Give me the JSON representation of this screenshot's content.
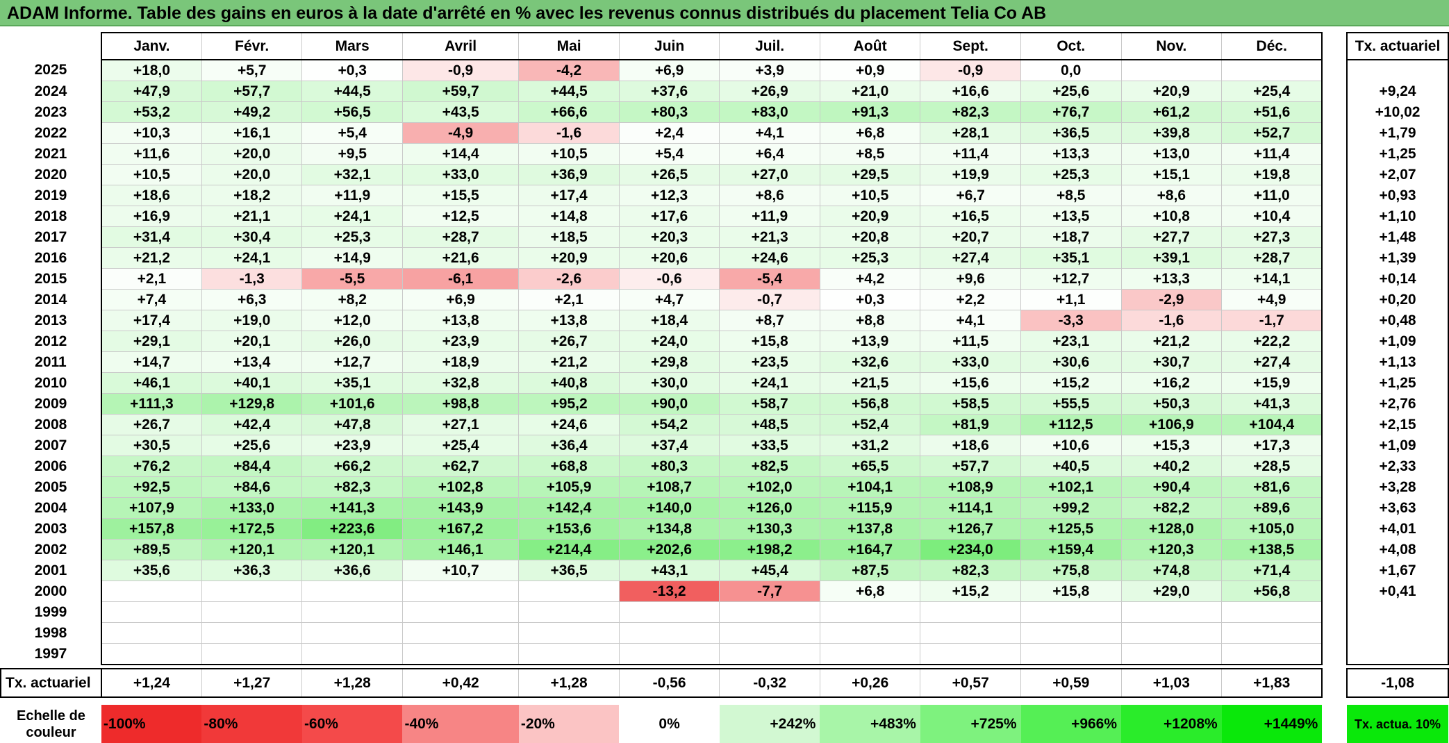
{
  "title": "ADAM Informe. Table des gains en euros à la date d'arrêté en % avec les revenus connus distribués du placement Telia Co AB",
  "header": {
    "months": [
      "Janv.",
      "Févr.",
      "Mars",
      "Avril",
      "Mai",
      "Juin",
      "Juil.",
      "Août",
      "Sept.",
      "Oct.",
      "Nov.",
      "Déc."
    ],
    "annual_label": "Tx. actuariel"
  },
  "rows": [
    {
      "year": "2025",
      "values": [
        "+18,0",
        "+5,7",
        "+0,3",
        "-0,9",
        "-4,2",
        "+6,9",
        "+3,9",
        "+0,9",
        "-0,9",
        "0,0",
        "",
        ""
      ],
      "annual": ""
    },
    {
      "year": "2024",
      "values": [
        "+47,9",
        "+57,7",
        "+44,5",
        "+59,7",
        "+44,5",
        "+37,6",
        "+26,9",
        "+21,0",
        "+16,6",
        "+25,6",
        "+20,9",
        "+25,4"
      ],
      "annual": "+9,24"
    },
    {
      "year": "2023",
      "values": [
        "+53,2",
        "+49,2",
        "+56,5",
        "+43,5",
        "+66,6",
        "+80,3",
        "+83,0",
        "+91,3",
        "+82,3",
        "+76,7",
        "+61,2",
        "+51,6"
      ],
      "annual": "+10,02"
    },
    {
      "year": "2022",
      "values": [
        "+10,3",
        "+16,1",
        "+5,4",
        "-4,9",
        "-1,6",
        "+2,4",
        "+4,1",
        "+6,8",
        "+28,1",
        "+36,5",
        "+39,8",
        "+52,7"
      ],
      "annual": "+1,79"
    },
    {
      "year": "2021",
      "values": [
        "+11,6",
        "+20,0",
        "+9,5",
        "+14,4",
        "+10,5",
        "+5,4",
        "+6,4",
        "+8,5",
        "+11,4",
        "+13,3",
        "+13,0",
        "+11,4"
      ],
      "annual": "+1,25"
    },
    {
      "year": "2020",
      "values": [
        "+10,5",
        "+20,0",
        "+32,1",
        "+33,0",
        "+36,9",
        "+26,5",
        "+27,0",
        "+29,5",
        "+19,9",
        "+25,3",
        "+15,1",
        "+19,8"
      ],
      "annual": "+2,07"
    },
    {
      "year": "2019",
      "values": [
        "+18,6",
        "+18,2",
        "+11,9",
        "+15,5",
        "+17,4",
        "+12,3",
        "+8,6",
        "+10,5",
        "+6,7",
        "+8,5",
        "+8,6",
        "+11,0"
      ],
      "annual": "+0,93"
    },
    {
      "year": "2018",
      "values": [
        "+16,9",
        "+21,1",
        "+24,1",
        "+12,5",
        "+14,8",
        "+17,6",
        "+11,9",
        "+20,9",
        "+16,5",
        "+13,5",
        "+10,8",
        "+10,4"
      ],
      "annual": "+1,10"
    },
    {
      "year": "2017",
      "values": [
        "+31,4",
        "+30,4",
        "+25,3",
        "+28,7",
        "+18,5",
        "+20,3",
        "+21,3",
        "+20,8",
        "+20,7",
        "+18,7",
        "+27,7",
        "+27,3"
      ],
      "annual": "+1,48"
    },
    {
      "year": "2016",
      "values": [
        "+21,2",
        "+24,1",
        "+14,9",
        "+21,6",
        "+20,9",
        "+20,6",
        "+24,6",
        "+25,3",
        "+27,4",
        "+35,1",
        "+39,1",
        "+28,7"
      ],
      "annual": "+1,39"
    },
    {
      "year": "2015",
      "values": [
        "+2,1",
        "-1,3",
        "-5,5",
        "-6,1",
        "-2,6",
        "-0,6",
        "-5,4",
        "+4,2",
        "+9,6",
        "+12,7",
        "+13,3",
        "+14,1"
      ],
      "annual": "+0,14"
    },
    {
      "year": "2014",
      "values": [
        "+7,4",
        "+6,3",
        "+8,2",
        "+6,9",
        "+2,1",
        "+4,7",
        "-0,7",
        "+0,3",
        "+2,2",
        "+1,1",
        "-2,9",
        "+4,9"
      ],
      "annual": "+0,20"
    },
    {
      "year": "2013",
      "values": [
        "+17,4",
        "+19,0",
        "+12,0",
        "+13,8",
        "+13,8",
        "+18,4",
        "+8,7",
        "+8,8",
        "+4,1",
        "-3,3",
        "-1,6",
        "-1,7"
      ],
      "annual": "+0,48"
    },
    {
      "year": "2012",
      "values": [
        "+29,1",
        "+20,1",
        "+26,0",
        "+23,9",
        "+26,7",
        "+24,0",
        "+15,8",
        "+13,9",
        "+11,5",
        "+23,1",
        "+21,2",
        "+22,2"
      ],
      "annual": "+1,09"
    },
    {
      "year": "2011",
      "values": [
        "+14,7",
        "+13,4",
        "+12,7",
        "+18,9",
        "+21,2",
        "+29,8",
        "+23,5",
        "+32,6",
        "+33,0",
        "+30,6",
        "+30,7",
        "+27,4"
      ],
      "annual": "+1,13"
    },
    {
      "year": "2010",
      "values": [
        "+46,1",
        "+40,1",
        "+35,1",
        "+32,8",
        "+40,8",
        "+30,0",
        "+24,1",
        "+21,5",
        "+15,6",
        "+15,2",
        "+16,2",
        "+15,9"
      ],
      "annual": "+1,25"
    },
    {
      "year": "2009",
      "values": [
        "+111,3",
        "+129,8",
        "+101,6",
        "+98,8",
        "+95,2",
        "+90,0",
        "+58,7",
        "+56,8",
        "+58,5",
        "+55,5",
        "+50,3",
        "+41,3"
      ],
      "annual": "+2,76"
    },
    {
      "year": "2008",
      "values": [
        "+26,7",
        "+42,4",
        "+47,8",
        "+27,1",
        "+24,6",
        "+54,2",
        "+48,5",
        "+52,4",
        "+81,9",
        "+112,5",
        "+106,9",
        "+104,4"
      ],
      "annual": "+2,15"
    },
    {
      "year": "2007",
      "values": [
        "+30,5",
        "+25,6",
        "+23,9",
        "+25,4",
        "+36,4",
        "+37,4",
        "+33,5",
        "+31,2",
        "+18,6",
        "+10,6",
        "+15,3",
        "+17,3"
      ],
      "annual": "+1,09"
    },
    {
      "year": "2006",
      "values": [
        "+76,2",
        "+84,4",
        "+66,2",
        "+62,7",
        "+68,8",
        "+80,3",
        "+82,5",
        "+65,5",
        "+57,7",
        "+40,5",
        "+40,2",
        "+28,5"
      ],
      "annual": "+2,33"
    },
    {
      "year": "2005",
      "values": [
        "+92,5",
        "+84,6",
        "+82,3",
        "+102,8",
        "+105,9",
        "+108,7",
        "+102,0",
        "+104,1",
        "+108,9",
        "+102,1",
        "+90,4",
        "+81,6"
      ],
      "annual": "+3,28"
    },
    {
      "year": "2004",
      "values": [
        "+107,9",
        "+133,0",
        "+141,3",
        "+143,9",
        "+142,4",
        "+140,0",
        "+126,0",
        "+115,9",
        "+114,1",
        "+99,2",
        "+82,2",
        "+89,6"
      ],
      "annual": "+3,63"
    },
    {
      "year": "2003",
      "values": [
        "+157,8",
        "+172,5",
        "+223,6",
        "+167,2",
        "+153,6",
        "+134,8",
        "+130,3",
        "+137,8",
        "+126,7",
        "+125,5",
        "+128,0",
        "+105,0"
      ],
      "annual": "+4,01"
    },
    {
      "year": "2002",
      "values": [
        "+89,5",
        "+120,1",
        "+120,1",
        "+146,1",
        "+214,4",
        "+202,6",
        "+198,2",
        "+164,7",
        "+234,0",
        "+159,4",
        "+120,3",
        "+138,5"
      ],
      "annual": "+4,08"
    },
    {
      "year": "2001",
      "values": [
        "+35,6",
        "+36,3",
        "+36,6",
        "+10,7",
        "+36,5",
        "+43,1",
        "+45,4",
        "+87,5",
        "+82,3",
        "+75,8",
        "+74,8",
        "+71,4"
      ],
      "annual": "+1,67"
    },
    {
      "year": "2000",
      "values": [
        "",
        "",
        "",
        "",
        "",
        "-13,2",
        "-7,7",
        "+6,8",
        "+15,2",
        "+15,8",
        "+29,0",
        "+56,8"
      ],
      "annual": "+0,41"
    },
    {
      "year": "1999",
      "values": [
        "",
        "",
        "",
        "",
        "",
        "",
        "",
        "",
        "",
        "",
        "",
        ""
      ],
      "annual": ""
    },
    {
      "year": "1998",
      "values": [
        "",
        "",
        "",
        "",
        "",
        "",
        "",
        "",
        "",
        "",
        "",
        ""
      ],
      "annual": ""
    },
    {
      "year": "1997",
      "values": [
        "",
        "",
        "",
        "",
        "",
        "",
        "",
        "",
        "",
        "",
        "",
        ""
      ],
      "annual": ""
    }
  ],
  "tx_row": {
    "label": "Tx. actuariel",
    "values": [
      "+1,24",
      "+1,27",
      "+1,28",
      "+0,42",
      "+1,28",
      "-0,56",
      "-0,32",
      "+0,26",
      "+0,57",
      "+0,59",
      "+1,03",
      "+1,83"
    ],
    "annual": "-1,08"
  },
  "scale": {
    "label": "Echelle de couleur",
    "steps": [
      {
        "text": "-100%",
        "color": "#ee2b2b"
      },
      {
        "text": "-80%",
        "color": "#f13939"
      },
      {
        "text": "-60%",
        "color": "#f44a4a"
      },
      {
        "text": "-40%",
        "color": "#f78585"
      },
      {
        "text": "-20%",
        "color": "#fbc4c4"
      },
      {
        "text": "0%",
        "color": "#ffffff"
      },
      {
        "text": "+242%",
        "color": "#d2f8d2"
      },
      {
        "text": "+483%",
        "color": "#a8f5a8"
      },
      {
        "text": "+725%",
        "color": "#7ef27e"
      },
      {
        "text": "+966%",
        "color": "#55ef55"
      },
      {
        "text": "+1208%",
        "color": "#2aec2a"
      },
      {
        "text": "+1449%",
        "color": "#0ae80a"
      }
    ],
    "annual_swatch": {
      "text": "Tx. actua. 10%",
      "color": "#0ae80a"
    }
  },
  "colors": {
    "title_bar": "#7ac67a",
    "positive_max": "#0ae80a",
    "negative_max": "#ee2b2b"
  }
}
